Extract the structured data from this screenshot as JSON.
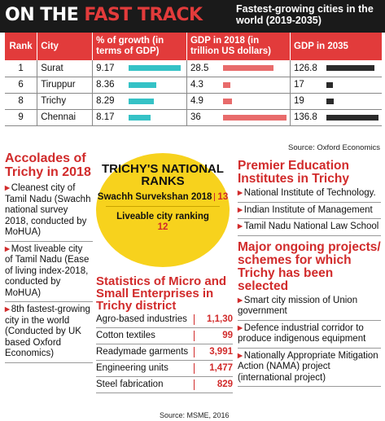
{
  "banner": {
    "title_part1": "ON THE ",
    "title_part2": "FAST TRACK",
    "subtitle": "Fastest-growing cities in the world (2019-2035)"
  },
  "chart_data": {
    "type": "table",
    "title": "Fastest-growing cities in the world (2019-2035)",
    "columns": [
      "Rank",
      "City",
      "% of growth (in terms of GDP)",
      "GDP in 2018 (in trillion US dollars)",
      "GDP in 2035"
    ],
    "rows": [
      {
        "rank": "1",
        "city": "Surat",
        "growth": "9.17",
        "gdp2018": "28.5",
        "gdp2035": "126.8",
        "growth_v": 9.17,
        "gdp2018_v": 28.5,
        "gdp2035_v": 126.8
      },
      {
        "rank": "6",
        "city": "Tiruppur",
        "growth": "8.36",
        "gdp2018": "4.3",
        "gdp2035": "17",
        "growth_v": 8.36,
        "gdp2018_v": 4.3,
        "gdp2035_v": 17
      },
      {
        "rank": "8",
        "city": "Trichy",
        "growth": "8.29",
        "gdp2018": "4.9",
        "gdp2035": "19",
        "growth_v": 8.29,
        "gdp2018_v": 4.9,
        "gdp2035_v": 19
      },
      {
        "rank": "9",
        "city": "Chennai",
        "growth": "8.17",
        "gdp2018": "36",
        "gdp2035": "136.8",
        "growth_v": 8.17,
        "gdp2018_v": 36,
        "gdp2035_v": 136.8
      }
    ],
    "bar_colors": {
      "growth": "#35c2c6",
      "gdp2018": "#e86b6b",
      "gdp2035": "#2b2b2b"
    },
    "source": "Source: Oxford Economics"
  },
  "accolades": {
    "heading": "Accolades of Trichy in 2018",
    "items": [
      "Cleanest city of Tamil Nadu (Swachh national survey 2018, conducted by MoHUA)",
      "Most liveable city of Tamil Nadu (Ease of living index-2018, conducted by MoHUA)",
      "8th fastest-growing city in the world (Conducted by UK based Oxford Economics)"
    ]
  },
  "badge": {
    "title": "TRICHY'S NATIONAL RANKS",
    "line1_label": "Swachh Survekshan 2018",
    "line1_value": "13",
    "line2_label": "Liveable city ranking",
    "line2_value": "12",
    "color": "#f7d21d"
  },
  "msme": {
    "heading": "Statistics of Micro and Small Enterprises in Trichy district",
    "rows": [
      {
        "label": "Agro-based industries",
        "value": "1,1,30"
      },
      {
        "label": "Cotton textiles",
        "value": "99"
      },
      {
        "label": "Readymade garments",
        "value": "3,991"
      },
      {
        "label": "Engineering units",
        "value": "1,477"
      },
      {
        "label": "Steel fabrication",
        "value": "829"
      }
    ],
    "source": "Source: MSME, 2016"
  },
  "education": {
    "heading": "Premier Education Institutes in Trichy",
    "items": [
      "National Institute of Technology.",
      "Indian Institute of Management",
      "Tamil Nadu National Law School"
    ]
  },
  "projects": {
    "heading": "Major ongoing projects/ schemes for which Trichy has been selected",
    "items": [
      "Smart city mission of Union government",
      "Defence industrial corridor to produce indigenous equipment",
      "Nationally Appropriate Mitigation Action (NAMA) project (international project)"
    ]
  },
  "colors": {
    "accent": "#d12b2b",
    "banner_bg": "#1a1a1a"
  }
}
